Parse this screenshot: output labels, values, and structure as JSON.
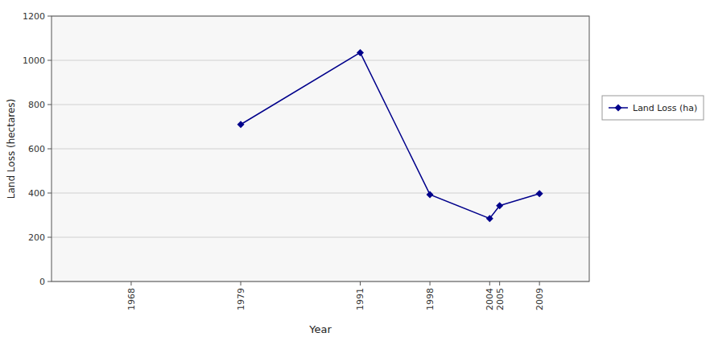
{
  "chart_data": {
    "type": "line",
    "x": [
      1968,
      1979,
      1991,
      1998,
      2004,
      2005,
      2009
    ],
    "xlabel": "Year",
    "ylabel": "Land Loss (hectares)",
    "xlim": [
      1960,
      2014
    ],
    "xticks": [
      1968,
      1979,
      1991,
      1998,
      2004,
      2005,
      2009
    ],
    "ylim": [
      0,
      1200
    ],
    "yticks": [
      0,
      200,
      400,
      600,
      800,
      1000,
      1200
    ],
    "grid": true,
    "legend": "right",
    "series": [
      {
        "name": "Land Loss (ha)",
        "color": "#00008B",
        "marker": "diamond",
        "values": [
          null,
          710,
          1035,
          393,
          285,
          343,
          397
        ]
      }
    ]
  }
}
